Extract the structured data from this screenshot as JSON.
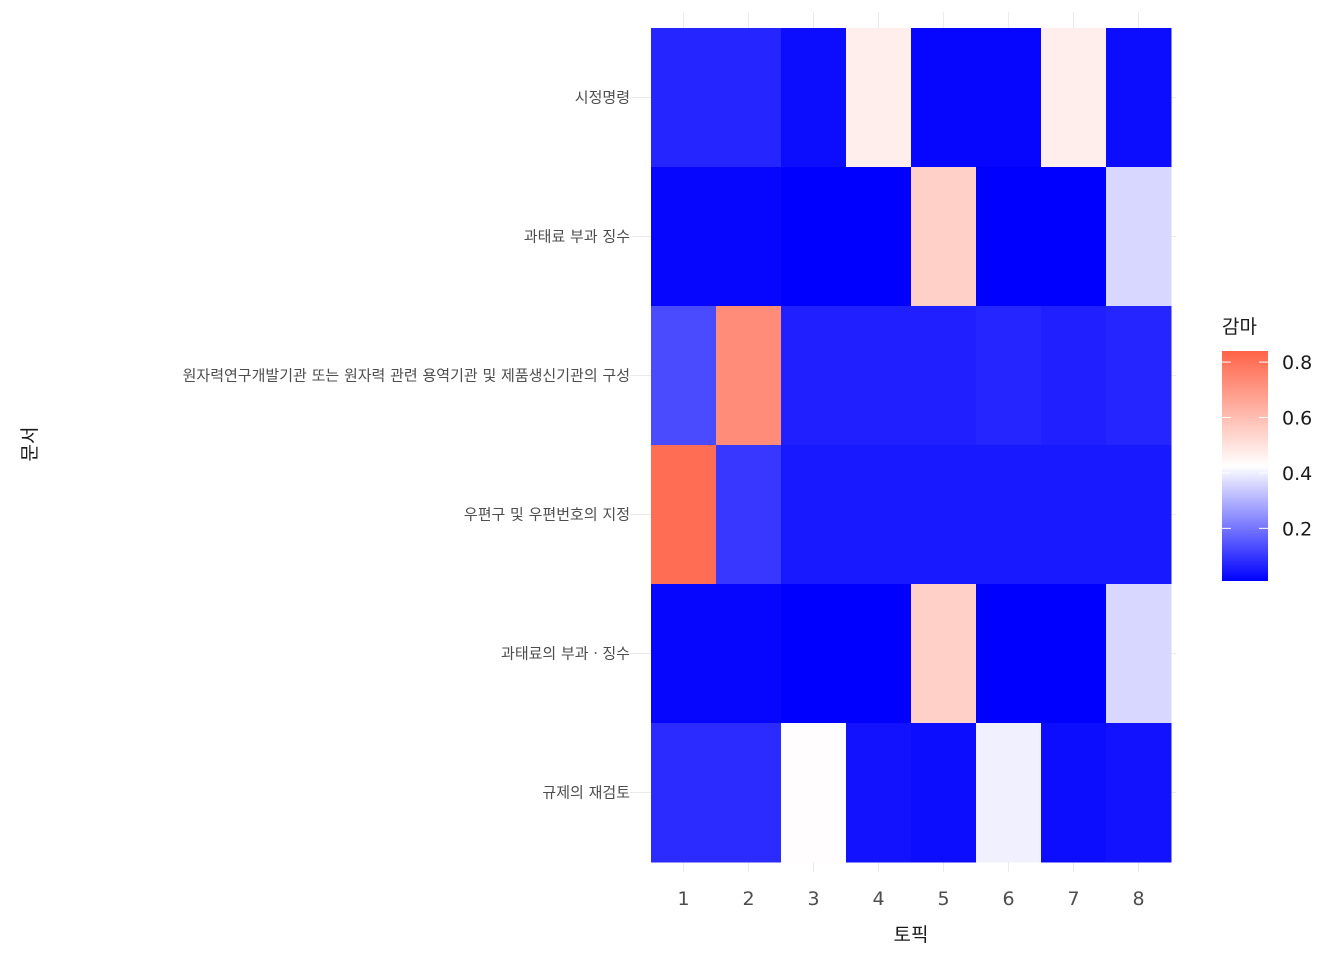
{
  "chart_data": {
    "type": "heatmap",
    "title": "",
    "xlabel": "토픽",
    "ylabel": "문서",
    "x_categories": [
      "1",
      "2",
      "3",
      "4",
      "5",
      "6",
      "7",
      "8"
    ],
    "y_categories": [
      "시정명령",
      "과태료 부과 징수",
      "원자력연구개발기관 또는 원자력 관련 용역기관 및 제품생신기관의 구성",
      "우편구 및 우편번호의 지정",
      "과태료의 부과ㆍ징수",
      "규제의 재검토"
    ],
    "values": [
      [
        0.07,
        0.07,
        0.03,
        0.47,
        0.02,
        0.02,
        0.47,
        0.03
      ],
      [
        0.02,
        0.02,
        0.01,
        0.01,
        0.55,
        0.01,
        0.01,
        0.36
      ],
      [
        0.13,
        0.73,
        0.06,
        0.06,
        0.06,
        0.07,
        0.06,
        0.07
      ],
      [
        0.81,
        0.1,
        0.05,
        0.05,
        0.05,
        0.05,
        0.05,
        0.05
      ],
      [
        0.02,
        0.02,
        0.01,
        0.01,
        0.55,
        0.01,
        0.01,
        0.36
      ],
      [
        0.08,
        0.08,
        0.43,
        0.04,
        0.03,
        0.4,
        0.03,
        0.04
      ]
    ],
    "legend": {
      "title": "감마",
      "ticks": [
        "0.2",
        "0.4",
        "0.6",
        "0.8"
      ],
      "tick_values": [
        0.2,
        0.4,
        0.6,
        0.8
      ],
      "range": [
        0.01,
        0.84
      ],
      "placement": "right"
    },
    "color_scale": {
      "low": "#0000ff",
      "mid": "#ffffff",
      "high": "#ff6347"
    },
    "grid": true
  }
}
